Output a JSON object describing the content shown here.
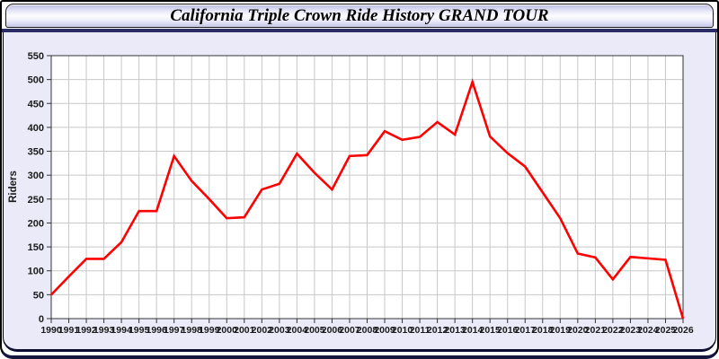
{
  "window": {
    "title": "California Triple Crown Ride History GRAND TOUR"
  },
  "colors": {
    "line": "#ff0000",
    "panel_bg": "#eaeaf8",
    "grid": "#c8c8c8",
    "plot_border": "#333333",
    "plot_bg": "#ffffff",
    "tick_label": "#1a1a1a",
    "navy_bar": "#2b2b66"
  },
  "chart_data": {
    "type": "line",
    "title": "California Triple Crown Ride History GRAND TOUR",
    "xlabel": "",
    "ylabel": "Riders",
    "ylim": [
      0,
      550
    ],
    "ytick_step": 50,
    "grid": true,
    "legend_position": "none",
    "x": [
      1990,
      1991,
      1992,
      1993,
      1994,
      1995,
      1996,
      1997,
      1998,
      1999,
      2000,
      2001,
      2002,
      2003,
      2004,
      2005,
      2006,
      2007,
      2008,
      2009,
      2010,
      2011,
      2012,
      2013,
      2014,
      2015,
      2016,
      2017,
      2018,
      2019,
      2020,
      2021,
      2022,
      2023,
      2024,
      2025,
      2026
    ],
    "series": [
      {
        "name": "Riders",
        "color": "#ff0000",
        "values": [
          50,
          88,
          125,
          125,
          160,
          225,
          225,
          340,
          288,
          250,
          210,
          212,
          270,
          282,
          345,
          305,
          270,
          340,
          342,
          392,
          374,
          380,
          411,
          385,
          495,
          381,
          346,
          318,
          264,
          210,
          136,
          128,
          82,
          129,
          126,
          123,
          0
        ]
      }
    ]
  }
}
